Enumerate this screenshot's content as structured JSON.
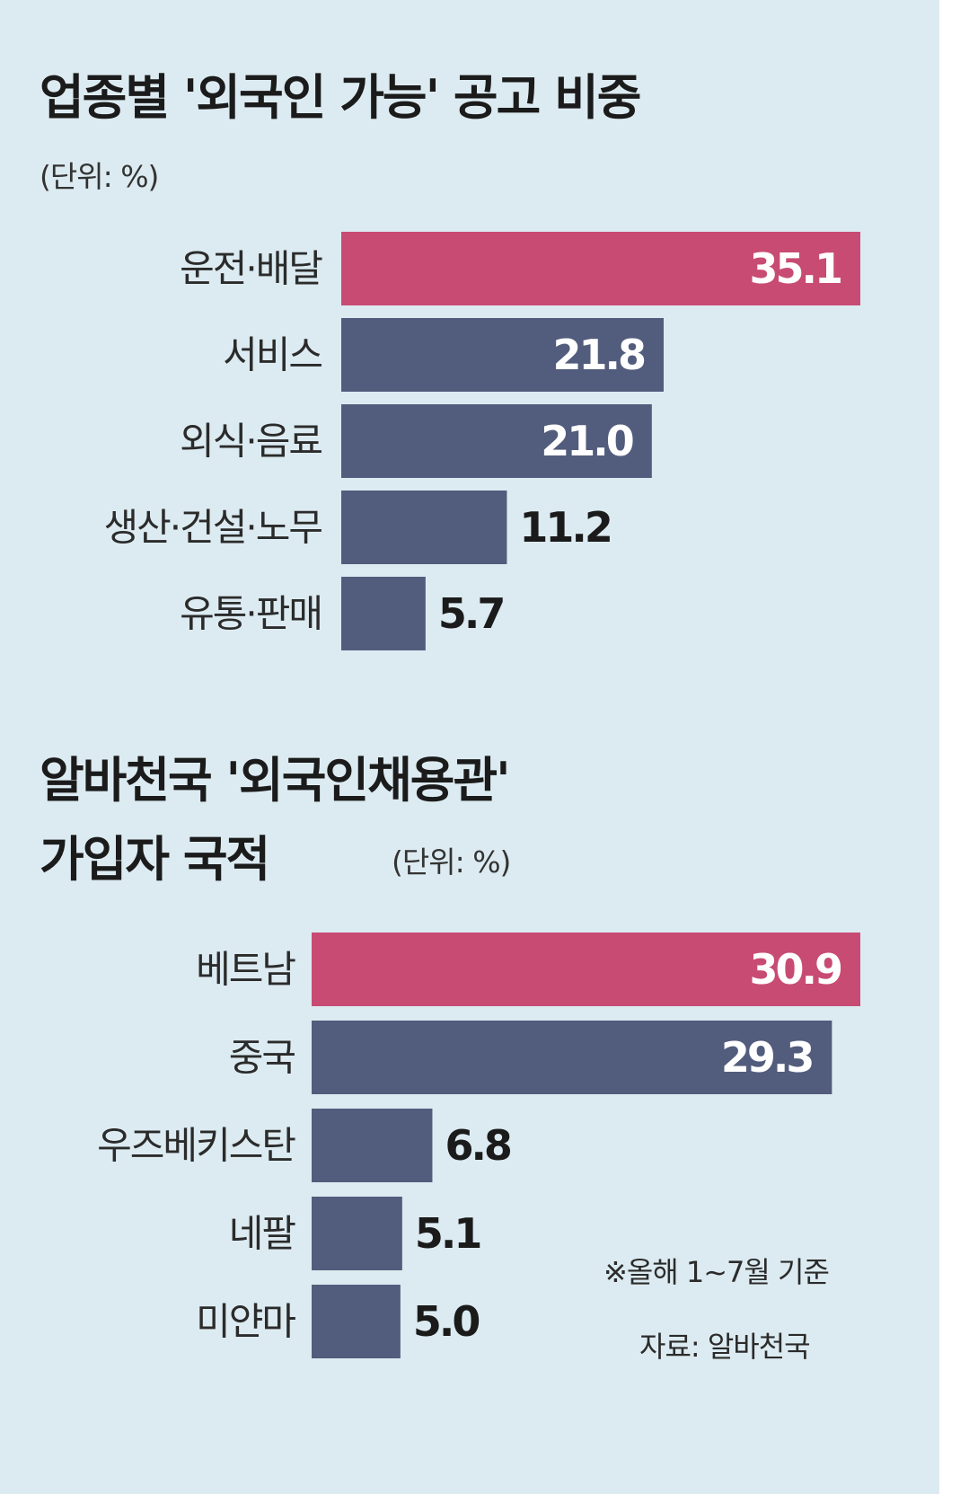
{
  "colors": {
    "background": "#dcebf1",
    "highlight_bar": "#c84b73",
    "default_bar": "#525c7c",
    "label_text": "#2b2b2b",
    "value_text_on_bar": "#ffffff",
    "value_text_outside": "#1b1b1b"
  },
  "chart_data": [
    {
      "type": "bar",
      "orientation": "horizontal",
      "title": "업종별 '외국인 가능' 공고 비중",
      "unit_label": "(단위: %)",
      "categories": [
        "운전·배달",
        "서비스",
        "외식·음료",
        "생산·건설·노무",
        "유통·판매"
      ],
      "values": [
        35.1,
        21.8,
        21.0,
        11.2,
        5.7
      ],
      "value_labels": [
        "35.1",
        "21.8",
        "21.0",
        "11.2",
        "5.7"
      ],
      "highlight_index": 0,
      "xlim": [
        0,
        35.1
      ],
      "grid": false
    },
    {
      "type": "bar",
      "orientation": "horizontal",
      "title_lines": [
        "알바천국 '외국인채용관'",
        "가입자 국적"
      ],
      "unit_label": "(단위: %)",
      "categories": [
        "베트남",
        "중국",
        "우즈베키스탄",
        "네팔",
        "미얀마"
      ],
      "values": [
        30.9,
        29.3,
        6.8,
        5.1,
        5.0
      ],
      "value_labels": [
        "30.9",
        "29.3",
        "6.8",
        "5.1",
        "5.0"
      ],
      "highlight_index": 0,
      "xlim": [
        0,
        30.9
      ],
      "grid": false
    }
  ],
  "notes": {
    "basis": "※올해 1~7월 기준",
    "source": "자료: 알바천국"
  }
}
